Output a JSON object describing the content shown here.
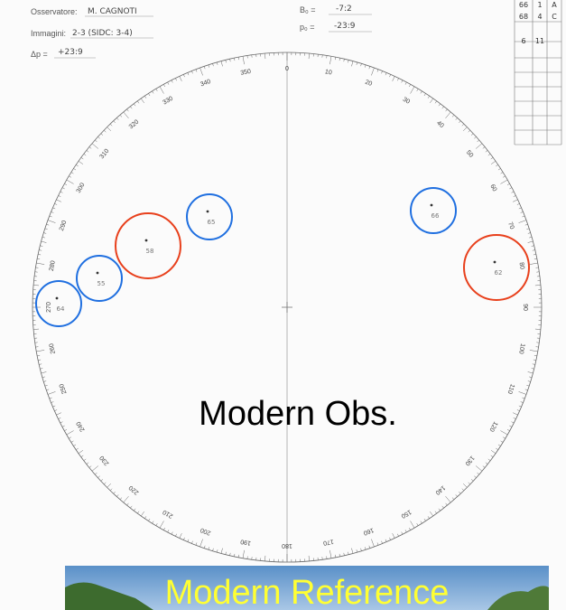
{
  "header": {
    "observer_label": "Osservatore:",
    "observer": "M. CAGNOTI",
    "images_label": "Immagini:",
    "images": "2-3 (SIDC: 3-4)",
    "dp_label": "Δp =",
    "dp": "+23:9",
    "b0_label": "B₀ =",
    "b0": "-7:2",
    "p0_label": "p₀ =",
    "p0": "-23:9"
  },
  "table": {
    "rows": [
      [
        "66",
        "1",
        "A"
      ],
      [
        "68",
        "4",
        "C"
      ],
      [
        "6",
        "11"
      ]
    ]
  },
  "disk": {
    "degree_labels": [
      0,
      10,
      20,
      30,
      40,
      50,
      60,
      70,
      80,
      90,
      100,
      110,
      120,
      130,
      140,
      150,
      160,
      170,
      180,
      190,
      200,
      210,
      220,
      230,
      240,
      250,
      260,
      270,
      280,
      290,
      300,
      310,
      320,
      330,
      340,
      350
    ]
  },
  "groups": [
    {
      "label": "64",
      "color": "#1f6fe0"
    },
    {
      "label": "55",
      "color": "#1f6fe0"
    },
    {
      "label": "58",
      "color": "#e8401c"
    },
    {
      "label": "65",
      "color": "#1f6fe0"
    },
    {
      "label": "66",
      "color": "#1f6fe0"
    },
    {
      "label": "62",
      "color": "#e8401c"
    }
  ],
  "overlay": {
    "observed": "Modern Obs.",
    "reference": "Modern Reference"
  }
}
